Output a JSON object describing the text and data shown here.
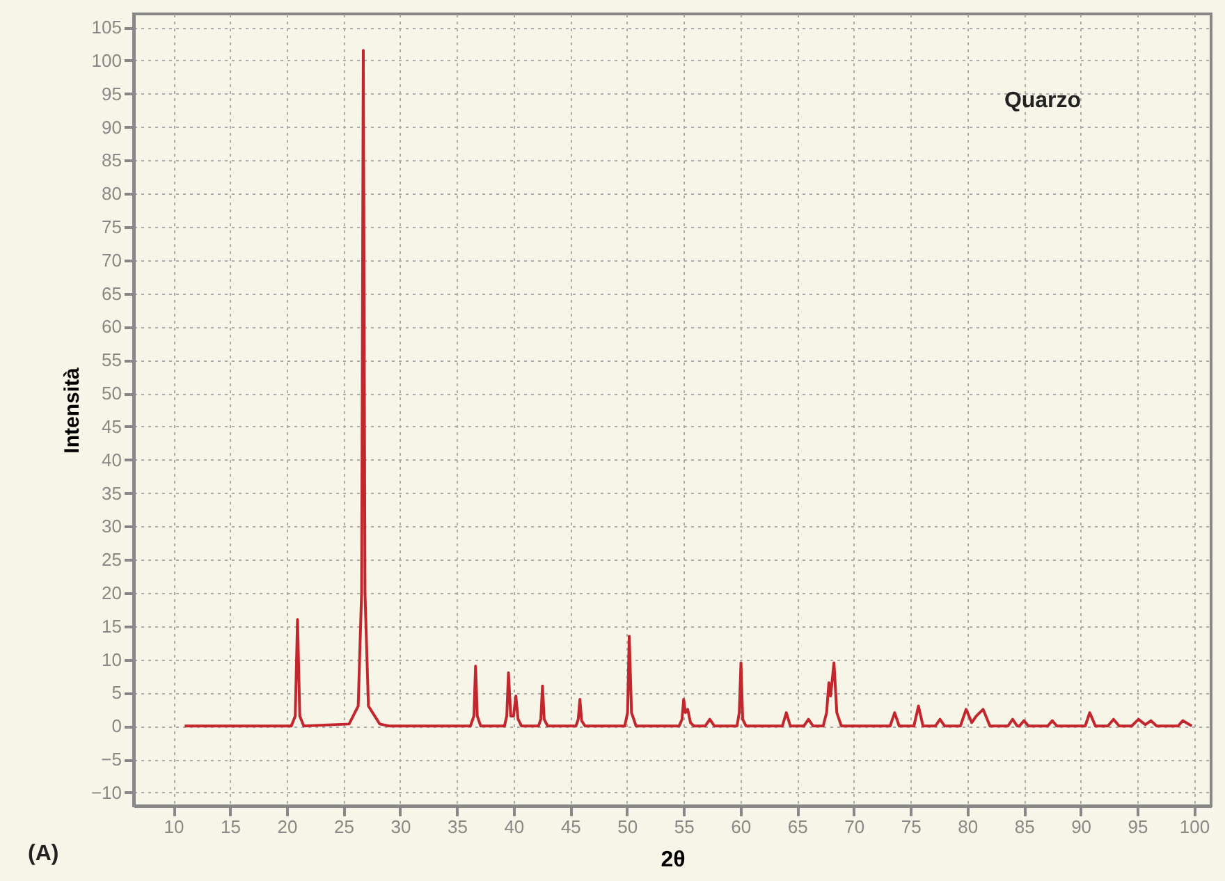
{
  "chart_data": {
    "type": "line",
    "xlabel": "2θ",
    "ylabel": "Intensità",
    "annotations": [
      "Quarzo",
      "(A)"
    ],
    "xlim": [
      6.5,
      101.5
    ],
    "ylim": [
      -12,
      107
    ],
    "xticks": [
      10,
      15,
      20,
      25,
      30,
      35,
      40,
      45,
      50,
      55,
      60,
      65,
      70,
      75,
      80,
      85,
      90,
      95,
      100
    ],
    "yticks": [
      -10,
      -5,
      0,
      5,
      10,
      15,
      20,
      25,
      30,
      35,
      40,
      45,
      50,
      55,
      60,
      65,
      70,
      75,
      80,
      85,
      90,
      95,
      100,
      105
    ],
    "grid": true,
    "marker": "none",
    "line_style": "solid",
    "series": [
      {
        "color": "#c1272d",
        "x": [
          11,
          20.4,
          20.75,
          20.95,
          21.15,
          21.5,
          25.5,
          26.3,
          26.6,
          26.75,
          26.9,
          27.2,
          28.2,
          29,
          36.2,
          36.5,
          36.65,
          36.8,
          37.1,
          39.2,
          39.4,
          39.55,
          39.75,
          40.0,
          40.2,
          40.4,
          40.7,
          42.2,
          42.4,
          42.55,
          42.7,
          43,
          45.5,
          45.7,
          45.85,
          46,
          46.3,
          49.8,
          50.05,
          50.2,
          50.4,
          50.8,
          54.6,
          54.85,
          55,
          55.15,
          55.35,
          55.6,
          55.9,
          56.9,
          57.3,
          57.7,
          59.7,
          59.9,
          60.05,
          60.2,
          60.5,
          63.7,
          64.05,
          64.4,
          65.6,
          66,
          66.4,
          67.3,
          67.6,
          67.8,
          67.95,
          68.25,
          68.5,
          68.9,
          73.2,
          73.6,
          74,
          75.3,
          75.7,
          76.1,
          77.2,
          77.6,
          78,
          79.4,
          79.9,
          80.4,
          80.8,
          81.4,
          82,
          83.6,
          84,
          84.4,
          84.6,
          85,
          85.4,
          87.1,
          87.5,
          87.9,
          90.4,
          90.8,
          91.3,
          92.4,
          92.9,
          93.4,
          94.5,
          95.1,
          95.7,
          96.2,
          96.7,
          98.6,
          99,
          99.8
        ],
        "values": [
          0,
          0,
          1.5,
          16,
          1.5,
          0,
          0.3,
          3,
          20,
          101.5,
          20,
          3,
          0.3,
          0,
          0,
          1.5,
          9,
          1.5,
          0,
          0,
          1.5,
          8,
          1.5,
          1.5,
          4.5,
          1,
          0,
          0,
          1,
          6,
          1,
          0,
          0,
          1,
          4,
          0.8,
          0,
          0,
          2,
          13.5,
          2,
          0,
          0,
          1,
          4,
          2,
          2.5,
          0.5,
          0,
          0,
          1,
          0,
          0,
          2,
          9.5,
          1,
          0,
          0,
          2,
          0,
          0,
          1,
          0,
          0,
          2,
          6.5,
          4.5,
          9.5,
          2,
          0,
          0,
          2,
          0,
          0,
          3,
          0,
          0,
          1,
          0,
          0,
          2.5,
          0.5,
          1.5,
          2.5,
          0,
          0,
          1,
          0,
          0,
          0.8,
          0,
          0,
          0.8,
          0,
          0,
          2,
          0,
          0,
          1,
          0,
          0,
          1,
          0.2,
          0.8,
          0,
          0,
          0.8,
          0
        ]
      }
    ]
  }
}
